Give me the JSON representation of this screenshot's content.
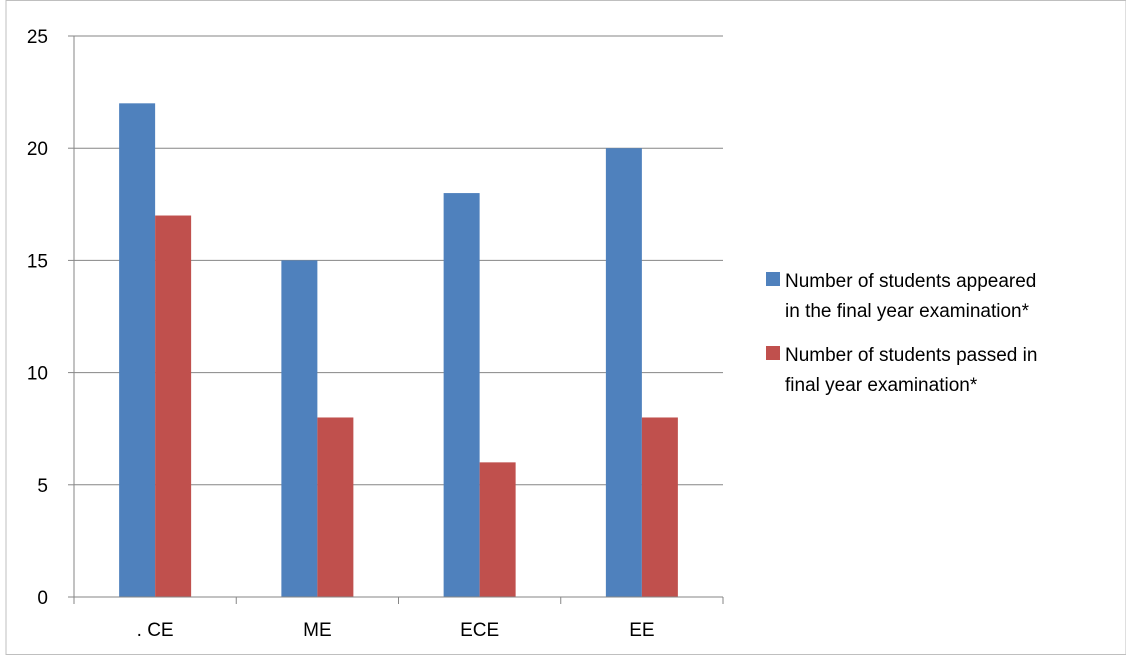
{
  "chart_data": {
    "type": "bar",
    "title": "",
    "xlabel": "",
    "ylabel": "",
    "categories": [
      ". CE",
      "ME",
      "ECE",
      "EE"
    ],
    "series": [
      {
        "name": "Number of students appeared in the final year examination*",
        "legend_lines": [
          "Number of students appeared",
          "in the final year examination*"
        ],
        "color": "#4F81BD",
        "values": [
          22,
          15,
          18,
          20
        ]
      },
      {
        "name": "Number of students passed in final year examination*",
        "legend_lines": [
          "Number of students passed in",
          "final year examination*"
        ],
        "color": "#C0504D",
        "values": [
          17,
          8,
          6,
          8
        ]
      }
    ],
    "ylim": [
      0,
      25
    ],
    "yticks": [
      0,
      5,
      10,
      15,
      20,
      25
    ],
    "grid": true,
    "legend_position": "right"
  }
}
